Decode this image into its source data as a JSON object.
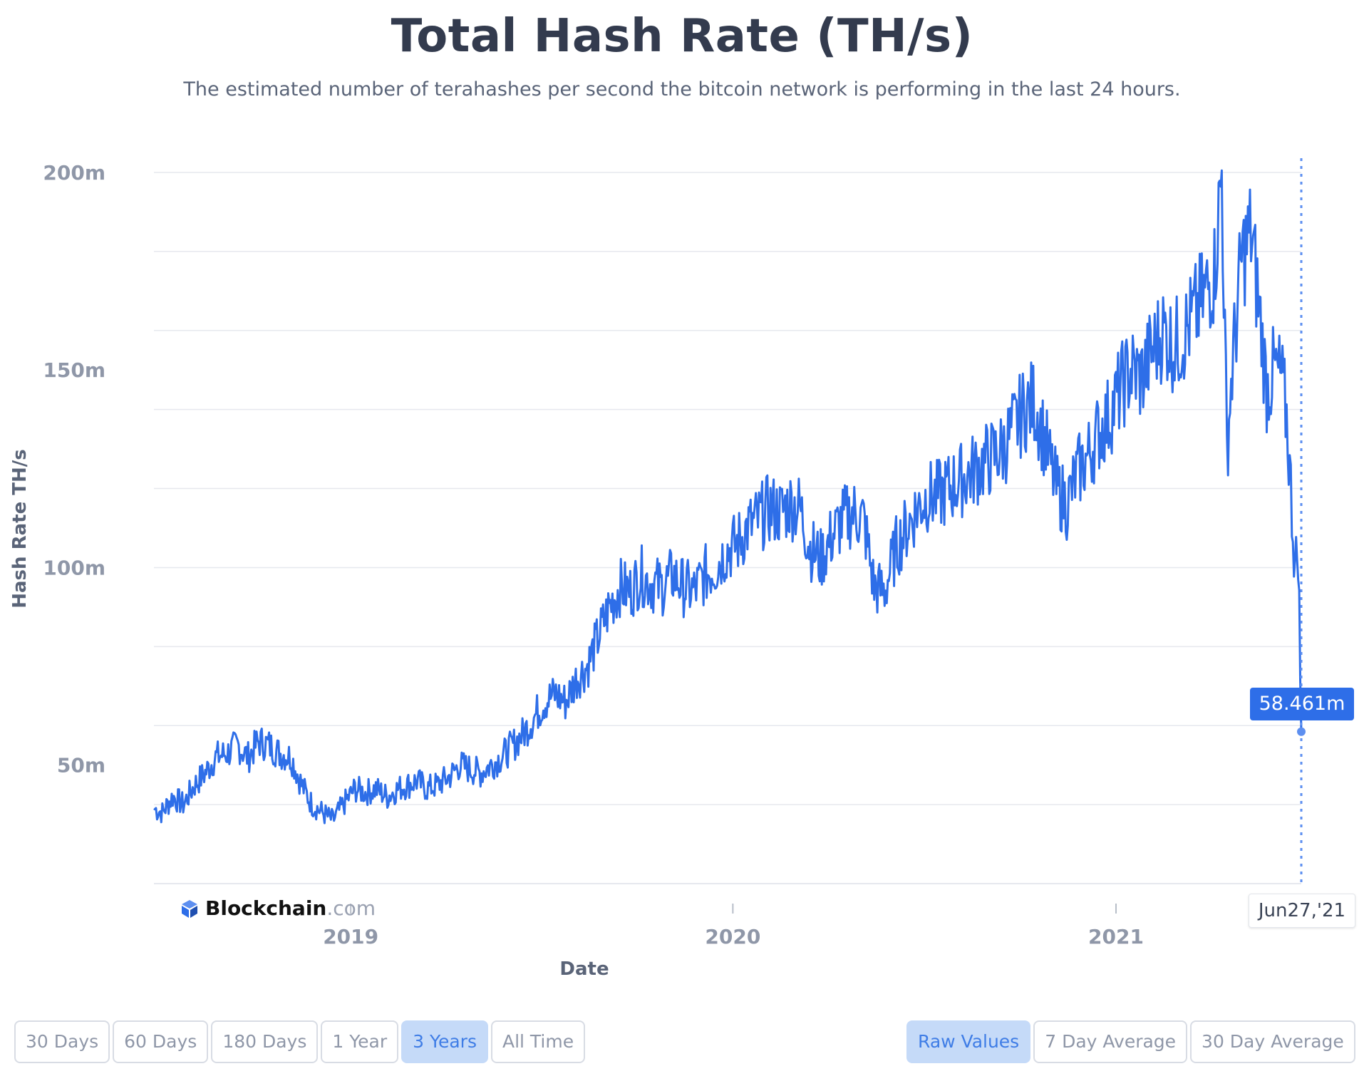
{
  "header": {
    "title": "Total Hash Rate (TH/s)",
    "subtitle": "The estimated number of terahashes per second the bitcoin network is performing in the last 24 hours."
  },
  "brand": {
    "name": "Blockchain",
    "suffix": ".com"
  },
  "tooltip": {
    "value": "58.461m",
    "date": "Jun27,'21"
  },
  "controls": {
    "ranges": [
      {
        "label": "30 Days",
        "active": false
      },
      {
        "label": "60 Days",
        "active": false
      },
      {
        "label": "180 Days",
        "active": false
      },
      {
        "label": "1 Year",
        "active": false
      },
      {
        "label": "3 Years",
        "active": true
      },
      {
        "label": "All Time",
        "active": false
      }
    ],
    "modes": [
      {
        "label": "Raw Values",
        "active": true
      },
      {
        "label": "7 Day Average",
        "active": false
      },
      {
        "label": "30 Day Average",
        "active": false
      }
    ]
  },
  "colors": {
    "line": "#2e6ee8",
    "grid": "#e6e8ee",
    "accent": "#2e6ee8"
  },
  "chart_data": {
    "type": "line",
    "title": "Total Hash Rate (TH/s)",
    "xlabel": "Date",
    "ylabel": "Hash Rate TH/s",
    "xlim": [
      "2018-06-27",
      "2021-06-27"
    ],
    "ylim": [
      20,
      200
    ],
    "yticks": [
      50,
      100,
      150,
      200
    ],
    "ytick_labels": [
      "50m",
      "100m",
      "150m",
      "200m"
    ],
    "ytick_grid_step": 20,
    "xticks": [
      "2019-01-01",
      "2020-01-01",
      "2021-01-01"
    ],
    "xtick_labels": [
      "2019",
      "2020",
      "2021"
    ],
    "grid": true,
    "series": [
      {
        "unit": "million TH/s",
        "points": [
          [
            "2018-06-27",
            39
          ],
          [
            "2018-07-05",
            38
          ],
          [
            "2018-07-15",
            42
          ],
          [
            "2018-07-25",
            40
          ],
          [
            "2018-08-05",
            45
          ],
          [
            "2018-08-15",
            48
          ],
          [
            "2018-08-25",
            52
          ],
          [
            "2018-09-05",
            53
          ],
          [
            "2018-09-15",
            55
          ],
          [
            "2018-09-25",
            52
          ],
          [
            "2018-10-05",
            56
          ],
          [
            "2018-10-15",
            55
          ],
          [
            "2018-10-25",
            53
          ],
          [
            "2018-11-05",
            52
          ],
          [
            "2018-11-15",
            45
          ],
          [
            "2018-11-25",
            40
          ],
          [
            "2018-12-05",
            38
          ],
          [
            "2018-12-15",
            36
          ],
          [
            "2018-12-25",
            40
          ],
          [
            "2019-01-05",
            44
          ],
          [
            "2019-01-15",
            43
          ],
          [
            "2019-01-25",
            44
          ],
          [
            "2019-02-05",
            42
          ],
          [
            "2019-02-15",
            44
          ],
          [
            "2019-02-25",
            45
          ],
          [
            "2019-03-05",
            46
          ],
          [
            "2019-03-15",
            44
          ],
          [
            "2019-03-25",
            45
          ],
          [
            "2019-04-05",
            47
          ],
          [
            "2019-04-15",
            50
          ],
          [
            "2019-04-25",
            49
          ],
          [
            "2019-05-05",
            48
          ],
          [
            "2019-05-15",
            50
          ],
          [
            "2019-05-25",
            52
          ],
          [
            "2019-06-05",
            55
          ],
          [
            "2019-06-15",
            58
          ],
          [
            "2019-06-25",
            62
          ],
          [
            "2019-07-05",
            66
          ],
          [
            "2019-07-15",
            68
          ],
          [
            "2019-07-25",
            66
          ],
          [
            "2019-08-05",
            72
          ],
          [
            "2019-08-15",
            75
          ],
          [
            "2019-08-25",
            82
          ],
          [
            "2019-09-05",
            90
          ],
          [
            "2019-09-15",
            95
          ],
          [
            "2019-09-25",
            94
          ],
          [
            "2019-10-05",
            98
          ],
          [
            "2019-10-15",
            96
          ],
          [
            "2019-10-25",
            95
          ],
          [
            "2019-11-05",
            98
          ],
          [
            "2019-11-15",
            95
          ],
          [
            "2019-11-25",
            94
          ],
          [
            "2019-12-05",
            98
          ],
          [
            "2019-12-15",
            100
          ],
          [
            "2019-12-25",
            104
          ],
          [
            "2020-01-05",
            106
          ],
          [
            "2020-01-15",
            110
          ],
          [
            "2020-01-25",
            112
          ],
          [
            "2020-02-05",
            115
          ],
          [
            "2020-02-15",
            114
          ],
          [
            "2020-02-25",
            116
          ],
          [
            "2020-03-05",
            115
          ],
          [
            "2020-03-15",
            105
          ],
          [
            "2020-03-25",
            102
          ],
          [
            "2020-04-05",
            108
          ],
          [
            "2020-04-15",
            112
          ],
          [
            "2020-04-25",
            114
          ],
          [
            "2020-05-05",
            112
          ],
          [
            "2020-05-15",
            95
          ],
          [
            "2020-05-25",
            94
          ],
          [
            "2020-06-05",
            105
          ],
          [
            "2020-06-15",
            110
          ],
          [
            "2020-06-25",
            115
          ],
          [
            "2020-07-05",
            118
          ],
          [
            "2020-07-15",
            118
          ],
          [
            "2020-07-25",
            120
          ],
          [
            "2020-08-05",
            122
          ],
          [
            "2020-08-15",
            124
          ],
          [
            "2020-08-25",
            126
          ],
          [
            "2020-09-05",
            128
          ],
          [
            "2020-09-15",
            130
          ],
          [
            "2020-09-25",
            135
          ],
          [
            "2020-10-05",
            140
          ],
          [
            "2020-10-15",
            142
          ],
          [
            "2020-10-25",
            132
          ],
          [
            "2020-11-05",
            120
          ],
          [
            "2020-11-15",
            116
          ],
          [
            "2020-11-25",
            124
          ],
          [
            "2020-12-05",
            128
          ],
          [
            "2020-12-15",
            134
          ],
          [
            "2020-12-25",
            138
          ],
          [
            "2021-01-05",
            145
          ],
          [
            "2021-01-15",
            150
          ],
          [
            "2021-01-25",
            148
          ],
          [
            "2021-02-05",
            155
          ],
          [
            "2021-02-15",
            160
          ],
          [
            "2021-02-25",
            156
          ],
          [
            "2021-03-05",
            158
          ],
          [
            "2021-03-15",
            163
          ],
          [
            "2021-03-25",
            168
          ],
          [
            "2021-04-05",
            175
          ],
          [
            "2021-04-12",
            200
          ],
          [
            "2021-04-17",
            130
          ],
          [
            "2021-04-22",
            150
          ],
          [
            "2021-05-01",
            178
          ],
          [
            "2021-05-10",
            185
          ],
          [
            "2021-05-18",
            165
          ],
          [
            "2021-05-25",
            145
          ],
          [
            "2021-06-01",
            150
          ],
          [
            "2021-06-08",
            148
          ],
          [
            "2021-06-13",
            138
          ],
          [
            "2021-06-17",
            120
          ],
          [
            "2021-06-21",
            100
          ],
          [
            "2021-06-24",
            105
          ],
          [
            "2021-06-27",
            58.461
          ]
        ]
      }
    ]
  }
}
